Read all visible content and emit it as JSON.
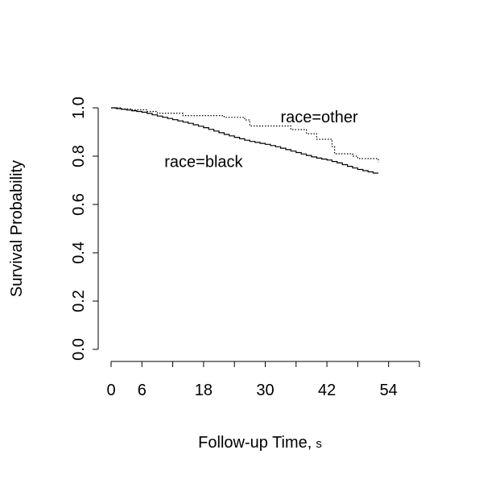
{
  "chart_data": {
    "type": "line",
    "subtype": "step (Kaplan-Meier survival curves)",
    "xlabel": "Follow-up Time,",
    "xlabel_unit": "s",
    "ylabel": "Survival Probability",
    "xlim": [
      0,
      60
    ],
    "ylim": [
      0,
      1
    ],
    "x_ticks": [
      0,
      6,
      12,
      18,
      24,
      30,
      36,
      42,
      48,
      54,
      60
    ],
    "x_tick_labels": [
      "0",
      "6",
      "",
      "18",
      "",
      "30",
      "",
      "42",
      "",
      "54",
      ""
    ],
    "y_ticks": [
      0.0,
      0.2,
      0.4,
      0.6,
      0.8,
      1.0
    ],
    "y_tick_labels": [
      "0.0",
      "0.2",
      "0.4",
      "0.6",
      "0.8",
      "1.0"
    ],
    "grid": false,
    "series": [
      {
        "name": "race=black",
        "line_style": "solid",
        "label_at": [
          18,
          0.775
        ],
        "points": [
          [
            0,
            1.0
          ],
          [
            1,
            0.997
          ],
          [
            2,
            0.994
          ],
          [
            3,
            0.991
          ],
          [
            4,
            0.988
          ],
          [
            5,
            0.985
          ],
          [
            6,
            0.982
          ],
          [
            7,
            0.977
          ],
          [
            8,
            0.971
          ],
          [
            9,
            0.966
          ],
          [
            10,
            0.961
          ],
          [
            11,
            0.956
          ],
          [
            12,
            0.951
          ],
          [
            13,
            0.946
          ],
          [
            14,
            0.941
          ],
          [
            15,
            0.936
          ],
          [
            16,
            0.93
          ],
          [
            17,
            0.924
          ],
          [
            18,
            0.918
          ],
          [
            19,
            0.911
          ],
          [
            20,
            0.904
          ],
          [
            21,
            0.897
          ],
          [
            22,
            0.89
          ],
          [
            23,
            0.884
          ],
          [
            24,
            0.878
          ],
          [
            25,
            0.872
          ],
          [
            26,
            0.866
          ],
          [
            27,
            0.861
          ],
          [
            28,
            0.857
          ],
          [
            29,
            0.853
          ],
          [
            30,
            0.849
          ],
          [
            31,
            0.844
          ],
          [
            32,
            0.839
          ],
          [
            33,
            0.833
          ],
          [
            34,
            0.827
          ],
          [
            35,
            0.821
          ],
          [
            36,
            0.815
          ],
          [
            37,
            0.809
          ],
          [
            38,
            0.803
          ],
          [
            39,
            0.797
          ],
          [
            40,
            0.792
          ],
          [
            41,
            0.788
          ],
          [
            42,
            0.784
          ],
          [
            43,
            0.778
          ],
          [
            44,
            0.772
          ],
          [
            45,
            0.765
          ],
          [
            46,
            0.758
          ],
          [
            47,
            0.751
          ],
          [
            48,
            0.745
          ],
          [
            49,
            0.74
          ],
          [
            50,
            0.735
          ],
          [
            51,
            0.73
          ],
          [
            52,
            0.73
          ]
        ]
      },
      {
        "name": "race=other",
        "line_style": "dotted",
        "label_at": [
          40.5,
          0.96
        ],
        "points": [
          [
            0,
            1.0
          ],
          [
            2,
            0.996
          ],
          [
            4,
            0.992
          ],
          [
            7,
            0.985
          ],
          [
            9,
            0.978
          ],
          [
            14,
            0.968
          ],
          [
            22,
            0.961
          ],
          [
            26,
            0.95
          ],
          [
            27,
            0.925
          ],
          [
            33,
            0.925
          ],
          [
            35,
            0.91
          ],
          [
            38,
            0.893
          ],
          [
            40,
            0.87
          ],
          [
            43,
            0.84
          ],
          [
            43.5,
            0.81
          ],
          [
            47,
            0.8
          ],
          [
            48,
            0.79
          ],
          [
            52,
            0.79
          ],
          [
            52,
            0.775
          ]
        ]
      }
    ]
  }
}
